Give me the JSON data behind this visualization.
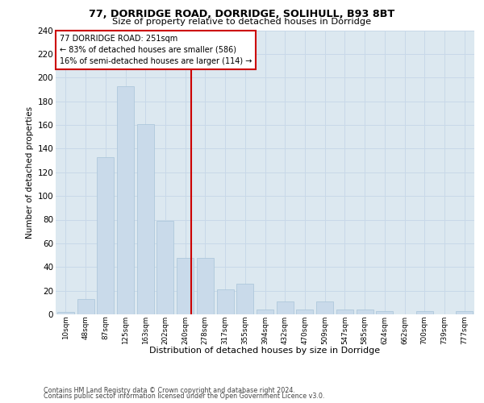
{
  "title1": "77, DORRIDGE ROAD, DORRIDGE, SOLIHULL, B93 8BT",
  "title2": "Size of property relative to detached houses in Dorridge",
  "xlabel": "Distribution of detached houses by size in Dorridge",
  "ylabel": "Number of detached properties",
  "bar_labels": [
    "10sqm",
    "48sqm",
    "87sqm",
    "125sqm",
    "163sqm",
    "202sqm",
    "240sqm",
    "278sqm",
    "317sqm",
    "355sqm",
    "394sqm",
    "432sqm",
    "470sqm",
    "509sqm",
    "547sqm",
    "585sqm",
    "624sqm",
    "662sqm",
    "700sqm",
    "739sqm",
    "777sqm"
  ],
  "bar_values": [
    2,
    13,
    133,
    193,
    161,
    79,
    48,
    48,
    21,
    26,
    4,
    11,
    4,
    11,
    4,
    4,
    3,
    0,
    3,
    0,
    3
  ],
  "bar_color": "#c9daea",
  "bar_edge_color": "#a8c4d8",
  "property_label": "77 DORRIDGE ROAD: 251sqm",
  "annotation_line1": "← 83% of detached houses are smaller (586)",
  "annotation_line2": "16% of semi-detached houses are larger (114) →",
  "vline_color": "#cc0000",
  "vline_x_index": 6.28,
  "annotation_box_color": "#cc0000",
  "grid_color": "#c8d8e8",
  "background_color": "#dce8f0",
  "footer1": "Contains HM Land Registry data © Crown copyright and database right 2024.",
  "footer2": "Contains public sector information licensed under the Open Government Licence v3.0."
}
